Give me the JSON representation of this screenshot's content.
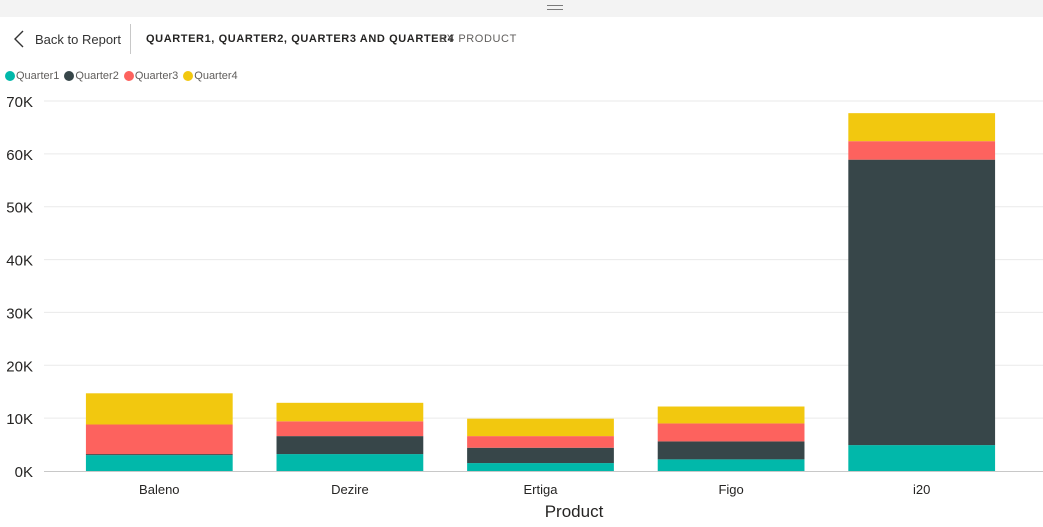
{
  "header": {
    "back_label": "Back to Report",
    "title": "QUARTER1, QUARTER2, QUARTER3 AND QUARTER4",
    "subtitle": "BY PRODUCT"
  },
  "colors": {
    "Quarter1": "#01b8aa",
    "Quarter2": "#374649",
    "Quarter3": "#fd625e",
    "Quarter4": "#f2c80f"
  },
  "chart_data": {
    "type": "bar",
    "stacked": true,
    "title": "",
    "xlabel": "Product",
    "ylabel": "",
    "categories": [
      "Baleno",
      "Dezire",
      "Ertiga",
      "Figo",
      "i20"
    ],
    "series": [
      {
        "name": "Quarter1",
        "values": [
          3000,
          3200,
          1500,
          2200,
          4900
        ]
      },
      {
        "name": "Quarter2",
        "values": [
          200,
          3400,
          2900,
          3400,
          54000
        ]
      },
      {
        "name": "Quarter3",
        "values": [
          5600,
          2800,
          2200,
          3400,
          3500
        ]
      },
      {
        "name": "Quarter4",
        "values": [
          5900,
          3500,
          3300,
          3200,
          5300
        ]
      }
    ],
    "yticks": [
      "0K",
      "10K",
      "20K",
      "30K",
      "40K",
      "50K",
      "60K",
      "70K"
    ],
    "ylim": [
      0,
      70000
    ],
    "legend": "top-left",
    "grid": true
  }
}
